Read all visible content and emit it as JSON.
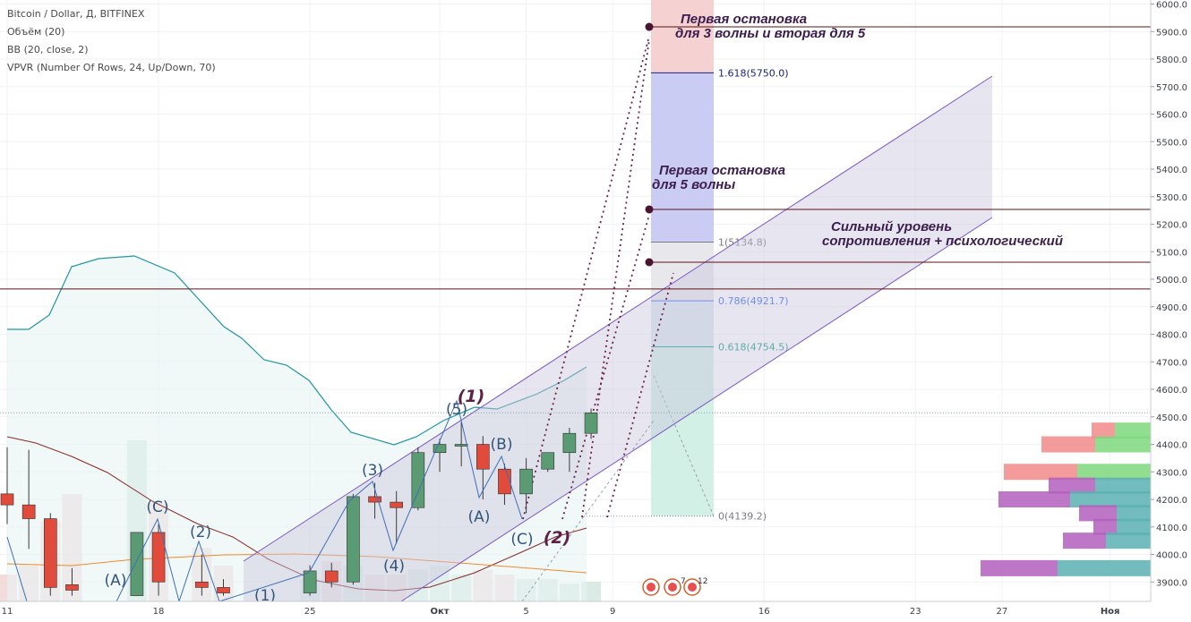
{
  "header": {
    "symbol_line": "Bitcoin / Dollar, Д, BITFINEX",
    "indicators": [
      "Объём (20)",
      "BB (20, close, 2)",
      "VPVR (Number Of Rows, 24, Up/Down, 70)"
    ]
  },
  "annotations": {
    "stop_3_5_line1": "Первая остановка",
    "stop_3_5_line2": "для 3 волны и вторая для 5",
    "stop_5_line1": "Первая остановка",
    "stop_5_line2": "для 5 волны",
    "resistance_line1": "Сильный уровень",
    "resistance_line2": "сопротивления + психологический"
  },
  "wave_labels": {
    "a1": "(A)",
    "c1": "(C)",
    "w2": "(2)",
    "w1": "(1)",
    "w3": "(3)",
    "w4": "(4)",
    "w5": "(5)",
    "big1": "(1)",
    "b": "(B)",
    "a2": "(A)",
    "c2": "(C)",
    "big2": "(2)"
  },
  "fib_levels": [
    {
      "label": "1.618(5750.0)",
      "price": 5750.0,
      "color": "#1a237e"
    },
    {
      "label": "1(5134.8)",
      "price": 5134.8,
      "color": "#787b86"
    },
    {
      "label": "0.786(4921.7)",
      "price": 4921.7,
      "color": "#2962ff"
    },
    {
      "label": "0.618(4754.5)",
      "price": 4754.5,
      "color": "#089981"
    },
    {
      "label": "0(4139.2)",
      "price": 4139.2,
      "color": "#787b86"
    }
  ],
  "horizontal_levels": [
    {
      "label": "5916.9",
      "price": 5916.9
    },
    {
      "label": "5253.8",
      "price": 5253.8
    },
    {
      "label": "5061.8",
      "price": 5061.8
    },
    {
      "label": "4964.8",
      "price": 4964.8
    }
  ],
  "last_price": {
    "label": "4514.7",
    "price": 4514.7,
    "color": "#26a69a"
  },
  "events": {
    "count_a": "7",
    "count_b": "12"
  },
  "colors": {
    "up": "#26a69a",
    "up_body": "#5b9b73",
    "down": "#e04b3c",
    "channel": "#7e57c2",
    "bb_band": "#2196a0"
  },
  "chart_data": {
    "type": "candlestick",
    "title": "Bitcoin / Dollar, Д, BITFINEX",
    "ylim": [
      3850,
      6000
    ],
    "y_ticks": [
      "3900.0",
      "4000.0",
      "4100.0",
      "4200.0",
      "4300.0",
      "4400.0",
      "4500.0",
      "4600.0",
      "4700.0",
      "4800.0",
      "4900.0",
      "5000.0",
      "5100.0",
      "5200.0",
      "5300.0",
      "5400.0",
      "5500.0",
      "5600.0",
      "5700.0",
      "5800.0",
      "5900.0",
      "6000.0"
    ],
    "x_ticks": [
      {
        "label": "11",
        "x": "2017-09-11"
      },
      {
        "label": "18",
        "x": "2017-09-18"
      },
      {
        "label": "25",
        "x": "2017-09-25"
      },
      {
        "label": "Окт",
        "x": "2017-10-01"
      },
      {
        "label": "5",
        "x": "2017-10-05"
      },
      {
        "label": "9",
        "x": "2017-10-09"
      },
      {
        "label": "16",
        "x": "2017-10-16"
      },
      {
        "label": "23",
        "x": "2017-10-23"
      },
      {
        "label": "27",
        "x": "2017-10-27"
      },
      {
        "label": "Ноя",
        "x": "2017-11-01"
      }
    ],
    "candles": [
      {
        "date": "2017-09-11",
        "open": 4220,
        "high": 4390,
        "low": 4110,
        "close": 4180
      },
      {
        "date": "2017-09-12",
        "open": 4180,
        "high": 4380,
        "low": 4020,
        "close": 4130
      },
      {
        "date": "2017-09-13",
        "open": 4130,
        "high": 4150,
        "low": 3850,
        "close": 3880
      },
      {
        "date": "2017-09-14",
        "open": 3890,
        "high": 3950,
        "low": 3850,
        "close": 3870
      },
      {
        "date": "2017-09-17",
        "open": 3850,
        "high": 4080,
        "low": 3850,
        "close": 4080
      },
      {
        "date": "2017-09-18",
        "open": 4080,
        "high": 4110,
        "low": 3850,
        "close": 3900
      },
      {
        "date": "2017-09-20",
        "open": 3900,
        "high": 4000,
        "low": 3850,
        "close": 3880
      },
      {
        "date": "2017-09-21",
        "open": 3880,
        "high": 3910,
        "low": 3850,
        "close": 3860
      },
      {
        "date": "2017-09-25",
        "open": 3860,
        "high": 3960,
        "low": 3850,
        "close": 3940
      },
      {
        "date": "2017-09-26",
        "open": 3940,
        "high": 3970,
        "low": 3880,
        "close": 3900
      },
      {
        "date": "2017-09-27",
        "open": 3900,
        "high": 4220,
        "low": 3890,
        "close": 4210
      },
      {
        "date": "2017-09-28",
        "open": 4210,
        "high": 4260,
        "low": 4130,
        "close": 4190
      },
      {
        "date": "2017-09-29",
        "open": 4190,
        "high": 4230,
        "low": 4040,
        "close": 4170
      },
      {
        "date": "2017-09-30",
        "open": 4170,
        "high": 4390,
        "low": 4160,
        "close": 4370
      },
      {
        "date": "2017-10-01",
        "open": 4370,
        "high": 4420,
        "low": 4300,
        "close": 4400
      },
      {
        "date": "2017-10-02",
        "open": 4400,
        "high": 4480,
        "low": 4320,
        "close": 4400
      },
      {
        "date": "2017-10-03",
        "open": 4400,
        "high": 4430,
        "low": 4200,
        "close": 4310
      },
      {
        "date": "2017-10-04",
        "open": 4310,
        "high": 4330,
        "low": 4180,
        "close": 4220
      },
      {
        "date": "2017-10-05",
        "open": 4220,
        "high": 4350,
        "low": 4150,
        "close": 4310
      },
      {
        "date": "2017-10-06",
        "open": 4310,
        "high": 4370,
        "low": 4300,
        "close": 4370
      },
      {
        "date": "2017-10-07",
        "open": 4370,
        "high": 4460,
        "low": 4300,
        "close": 4440
      },
      {
        "date": "2017-10-08",
        "open": 4440,
        "high": 4530,
        "low": 4420,
        "close": 4514.7
      }
    ],
    "volume_profile": [
      {
        "price": 4450,
        "up": 1,
        "down": 1
      },
      {
        "price": 4400,
        "up": 2,
        "down": 2
      },
      {
        "price": 4300,
        "up": 3,
        "down": 3
      },
      {
        "price": 4250,
        "up": 2,
        "down": 2
      },
      {
        "price": 4200,
        "up": 3,
        "down": 3
      },
      {
        "price": 4150,
        "up": 2,
        "down": 2
      },
      {
        "price": 4100,
        "up": 2,
        "down": 1
      },
      {
        "price": 4050,
        "up": 2,
        "down": 2
      },
      {
        "price": 3950,
        "up": 3,
        "down": 3
      }
    ]
  }
}
